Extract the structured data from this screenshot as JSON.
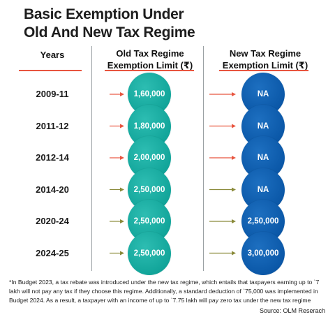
{
  "title_line1": "Basic Exemption Under",
  "title_line2": "Old And New Tax Regime",
  "headers": {
    "years": "Years",
    "old_line1": "Old Tax Regime",
    "old_line2": "Exemption Limit (₹)",
    "new_line1": "New Tax Regime",
    "new_line2": "Exemption Limit (₹)"
  },
  "colors": {
    "old_regime": "#12a59a",
    "new_regime": "#0b58a8",
    "accent_rule": "#e8553f",
    "arrow_red": "#e8553f",
    "arrow_olive": "#8a8a3a"
  },
  "chart_data": {
    "type": "table",
    "title": "Basic Exemption Under Old And New Tax Regime",
    "columns": [
      "Years",
      "Old Tax Regime Exemption Limit (₹)",
      "New Tax Regime Exemption Limit (₹)"
    ],
    "rows": [
      {
        "year": "2009-11",
        "old": "1,60,000",
        "new": "NA",
        "arrow": "red"
      },
      {
        "year": "2011-12",
        "old": "1,80,000",
        "new": "NA",
        "arrow": "red"
      },
      {
        "year": "2012-14",
        "old": "2,00,000",
        "new": "NA",
        "arrow": "red"
      },
      {
        "year": "2014-20",
        "old": "2,50,000",
        "new": "NA",
        "arrow": "olive"
      },
      {
        "year": "2020-24",
        "old": "2,50,000",
        "new": "2,50,000",
        "arrow": "olive"
      },
      {
        "year": "2024-25",
        "old": "2,50,000",
        "new": "3,00,000",
        "arrow": "olive"
      }
    ]
  },
  "footnote": "*In Budget 2023, a tax rebate was introduced under the new tax regime, which entails that taxpayers earning up to `7 lakh will not pay any tax if they choose this regime. Additionally, a standard deduction of `75,000 was implemented in Budget 2024. As a result, a taxpayer with an income of up to `7.75 lakh will pay zero tax under the new tax regime",
  "source": "Source: OLM Reserach"
}
